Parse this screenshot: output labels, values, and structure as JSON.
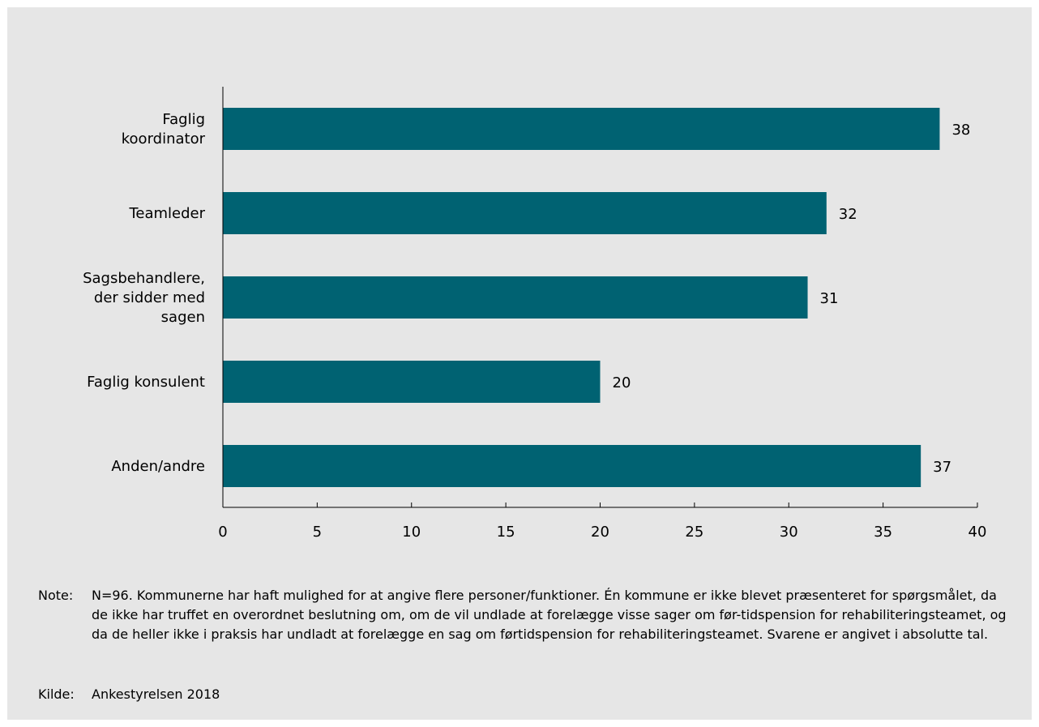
{
  "chart_data": {
    "type": "bar",
    "orientation": "horizontal",
    "categories": [
      [
        "Faglig",
        "koordinator"
      ],
      [
        "Teamleder"
      ],
      [
        "Sagsbehandlere,",
        "der sidder med",
        "sagen"
      ],
      [
        "Faglig konsulent"
      ],
      [
        "Anden/andre"
      ]
    ],
    "values": [
      38,
      32,
      31,
      20,
      37
    ],
    "data_labels": [
      "38",
      "32",
      "31",
      "20",
      "37"
    ],
    "xlim": [
      0,
      40
    ],
    "xticks": [
      0,
      5,
      10,
      15,
      20,
      25,
      30,
      35,
      40
    ],
    "grid": false,
    "bar_color": "#006272"
  },
  "colors": {
    "background": "#e6e6e6",
    "bar": "#006272"
  },
  "notes": {
    "note_key": "Note:",
    "note_text": "N=96. Kommunerne har haft mulighed for at angive flere personer/funktioner. Én kommune er ikke blevet præsenteret for spørgsmålet, da de ikke har truffet en overordnet beslutning om, om de vil undlade at forelægge visse sager om før-tidspension for rehabiliteringsteamet, og da de heller ikke i praksis har undladt at forelægge en sag om førtidspension for rehabiliteringsteamet. Svarene er angivet i absolutte tal.",
    "source_key": "Kilde:",
    "source_text": "Ankestyrelsen 2018"
  }
}
